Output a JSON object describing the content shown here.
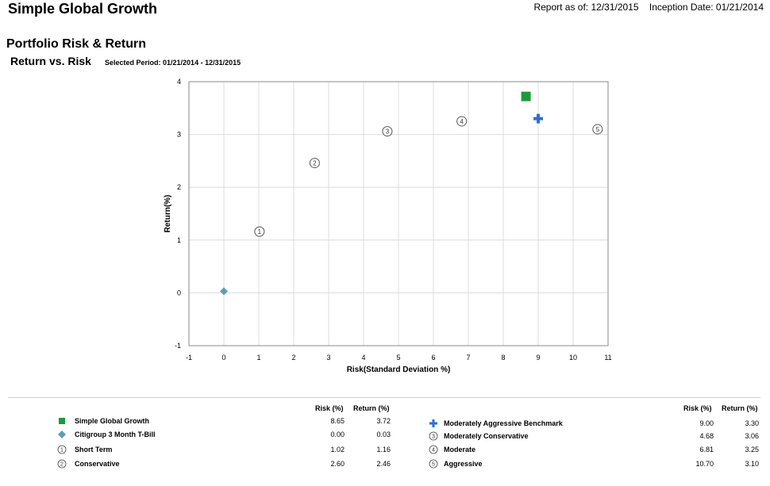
{
  "header": {
    "title": "Simple Global Growth",
    "report_as_of": "Report as of: 12/31/2015",
    "inception": "Inception Date: 01/21/2014"
  },
  "section_title": "Portfolio Risk & Return",
  "subhead": "Return vs. Risk",
  "period": "Selected Period:  01/21/2014  -  12/31/2015",
  "chart_data": {
    "type": "scatter",
    "xlabel": "Risk(Standard Deviation %)",
    "ylabel": "Return(%)",
    "xlim": [
      -1,
      11
    ],
    "ylim": [
      -1,
      4
    ],
    "xticks": [
      "-1",
      "0",
      "1",
      "2",
      "3",
      "4",
      "5",
      "6",
      "7",
      "8",
      "9",
      "10",
      "11"
    ],
    "yticks": [
      "-1",
      "0",
      "1",
      "2",
      "3",
      "4"
    ],
    "grid": true,
    "series": [
      {
        "name": "Simple Global Growth",
        "marker": "square",
        "color": "#1e9a3b",
        "x": 8.65,
        "y": 3.72
      },
      {
        "name": "Citigroup 3 Month T-Bill",
        "marker": "diamond",
        "color": "#5f9eb4",
        "x": 0.0,
        "y": 0.03
      },
      {
        "name": "Short Term",
        "marker": "circle-1",
        "label": "1",
        "x": 1.02,
        "y": 1.16
      },
      {
        "name": "Conservative",
        "marker": "circle-2",
        "label": "2",
        "x": 2.6,
        "y": 2.46
      },
      {
        "name": "Moderately Aggressive Benchmark",
        "marker": "plus",
        "color": "#2a6fd6",
        "x": 9.0,
        "y": 3.3
      },
      {
        "name": "Moderately Conservative",
        "marker": "circle-3",
        "label": "3",
        "x": 4.68,
        "y": 3.06
      },
      {
        "name": "Moderate",
        "marker": "circle-4",
        "label": "4",
        "x": 6.81,
        "y": 3.25
      },
      {
        "name": "Aggressive",
        "marker": "circle-5",
        "label": "5",
        "x": 10.7,
        "y": 3.1
      }
    ]
  },
  "legend": {
    "risk_header": "Risk (%)",
    "return_header": "Return (%)",
    "left": [
      {
        "icon": "square",
        "icon_label": "",
        "name": "Simple Global Growth",
        "risk": "8.65",
        "return": "3.72"
      },
      {
        "icon": "diamond",
        "icon_label": "",
        "name": "Citigroup 3 Month T-Bill",
        "risk": "0.00",
        "return": "0.03"
      },
      {
        "icon": "circle",
        "icon_label": "1",
        "name": "Short Term",
        "risk": "1.02",
        "return": "1.16"
      },
      {
        "icon": "circle",
        "icon_label": "2",
        "name": "Conservative",
        "risk": "2.60",
        "return": "2.46"
      }
    ],
    "right": [
      {
        "icon": "plus",
        "icon_label": "",
        "name": "Moderately Aggressive Benchmark",
        "risk": "9.00",
        "return": "3.30"
      },
      {
        "icon": "circle",
        "icon_label": "3",
        "name": "Moderately Conservative",
        "risk": "4.68",
        "return": "3.06"
      },
      {
        "icon": "circle",
        "icon_label": "4",
        "name": "Moderate",
        "risk": "6.81",
        "return": "3.25"
      },
      {
        "icon": "circle",
        "icon_label": "5",
        "name": "Aggressive",
        "risk": "10.70",
        "return": "3.10"
      }
    ]
  }
}
